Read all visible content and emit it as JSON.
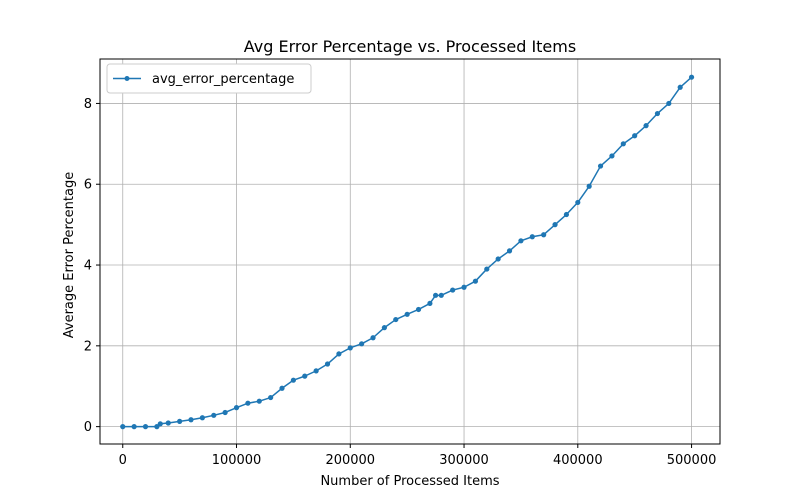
{
  "chart_data": {
    "type": "line",
    "title": "Avg Error Percentage vs. Processed Items",
    "xlabel": "Number of Processed Items",
    "ylabel": "Average Error Percentage",
    "xlim": [
      -20000,
      525000
    ],
    "ylim": [
      -0.43,
      9.1
    ],
    "xticks": [
      0,
      100000,
      200000,
      300000,
      400000,
      500000
    ],
    "xtick_labels": [
      "0",
      "100000",
      "200000",
      "300000",
      "400000",
      "500000"
    ],
    "yticks": [
      0,
      2,
      4,
      6,
      8
    ],
    "ytick_labels": [
      "0",
      "2",
      "4",
      "6",
      "8"
    ],
    "grid": true,
    "legend_position": "top-left",
    "series": [
      {
        "name": "avg_error_percentage",
        "color": "#1f77b4",
        "marker": "circle",
        "x": [
          0,
          10000,
          20000,
          30000,
          33000,
          40000,
          50000,
          60000,
          70000,
          80000,
          90000,
          100000,
          110000,
          120000,
          130000,
          140000,
          150000,
          160000,
          170000,
          180000,
          190000,
          200000,
          210000,
          220000,
          230000,
          240000,
          250000,
          260000,
          270000,
          275000,
          280000,
          290000,
          300000,
          310000,
          320000,
          330000,
          340000,
          350000,
          360000,
          370000,
          380000,
          390000,
          400000,
          410000,
          420000,
          430000,
          440000,
          450000,
          460000,
          470000,
          480000,
          490000,
          500000
        ],
        "y": [
          0.0,
          0.0,
          0.0,
          0.0,
          0.07,
          0.09,
          0.13,
          0.17,
          0.22,
          0.28,
          0.35,
          0.47,
          0.58,
          0.63,
          0.72,
          0.95,
          1.15,
          1.25,
          1.38,
          1.55,
          1.8,
          1.95,
          2.05,
          2.2,
          2.45,
          2.65,
          2.78,
          2.9,
          3.05,
          3.25,
          3.25,
          3.38,
          3.45,
          3.6,
          3.9,
          4.15,
          4.35,
          4.6,
          4.7,
          4.75,
          5.0,
          5.25,
          5.55,
          5.95,
          6.45,
          6.7,
          7.0,
          7.2,
          7.45,
          7.75,
          8.0,
          8.4,
          8.65
        ]
      }
    ]
  }
}
